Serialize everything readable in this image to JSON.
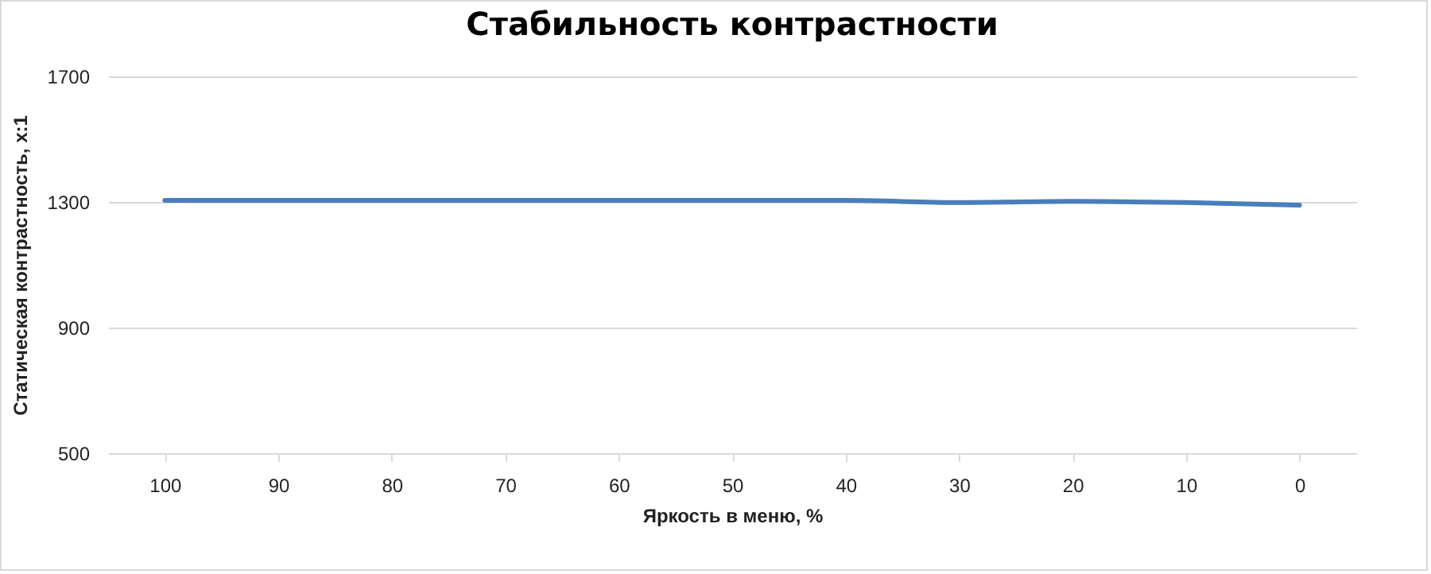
{
  "chart_data": {
    "type": "line",
    "title": "Стабильность контрастности",
    "xlabel": "Яркость в меню, %",
    "ylabel": "Статическая контрастность, x:1",
    "categories": [
      "100",
      "90",
      "80",
      "70",
      "60",
      "50",
      "40",
      "30",
      "20",
      "10",
      "0"
    ],
    "series": [
      {
        "color": "#4a7ebb",
        "values": [
          1305,
          1305,
          1305,
          1305,
          1305,
          1305,
          1305,
          1298,
          1302,
          1298,
          1290
        ]
      }
    ],
    "ylim": [
      500,
      1700
    ],
    "yticks": [
      500,
      900,
      1300,
      1700
    ],
    "grid": "y",
    "legend": false,
    "marker": "none",
    "line_style": "solid"
  }
}
